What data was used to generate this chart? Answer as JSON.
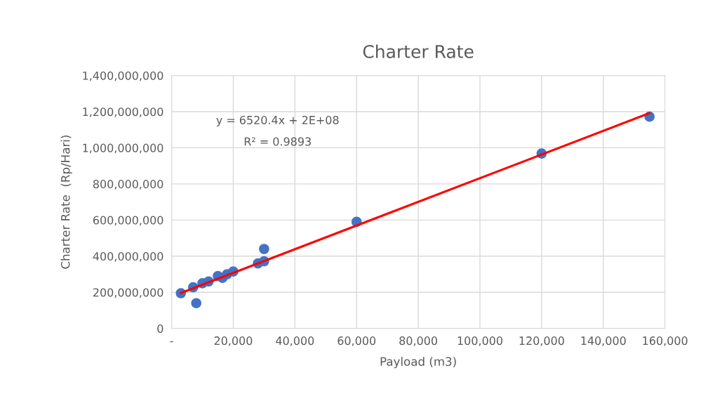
{
  "chart_data": {
    "type": "scatter",
    "title": "Charter Rate",
    "xlabel": "Payload (m3)",
    "ylabel": "Charter Rate  (Rp/Hari)",
    "annotations": [
      "y = 6520.4x + 2E+08",
      "R² = 0.9893"
    ],
    "series": [
      {
        "color": "#4472c4",
        "marker": "circle",
        "x": [
          3000,
          8000,
          7000,
          10000,
          12000,
          15000,
          16500,
          18000,
          20000,
          28000,
          30000,
          30000,
          60000,
          120000,
          155000
        ],
        "values": [
          195000000,
          140000000,
          228000000,
          250000000,
          260000000,
          290000000,
          280000000,
          300000000,
          315000000,
          360000000,
          372000000,
          440000000,
          590000000,
          968000000,
          1172000000
        ]
      },
      {
        "type": "line",
        "color": "#ff0000",
        "marker": "none",
        "x": [
          3000,
          155000
        ],
        "values": [
          196000000,
          1192000000
        ]
      }
    ],
    "xlim": [
      0,
      160000
    ],
    "ylim": [
      0,
      1400000000
    ],
    "xticks": [
      {
        "value": 0,
        "label": "-"
      },
      {
        "value": 20000,
        "label": "20,000"
      },
      {
        "value": 40000,
        "label": "40,000"
      },
      {
        "value": 60000,
        "label": "60,000"
      },
      {
        "value": 80000,
        "label": "80,000"
      },
      {
        "value": 100000,
        "label": "100,000"
      },
      {
        "value": 120000,
        "label": "120,000"
      },
      {
        "value": 140000,
        "label": "140,000"
      },
      {
        "value": 160000,
        "label": "160,000"
      }
    ],
    "yticks": [
      0,
      {
        "value": 200000000,
        "label": "200,000,000"
      },
      {
        "value": 400000000,
        "label": "400,000,000"
      },
      {
        "value": 600000000,
        "label": "600,000,000"
      },
      {
        "value": 800000000,
        "label": "800,000,000"
      },
      {
        "value": 1000000000,
        "label": "1,000,000,000"
      },
      {
        "value": 1200000000,
        "label": "1,200,000,000"
      },
      {
        "value": 1400000000,
        "label": "1,400,000,000"
      }
    ],
    "grid": true
  }
}
